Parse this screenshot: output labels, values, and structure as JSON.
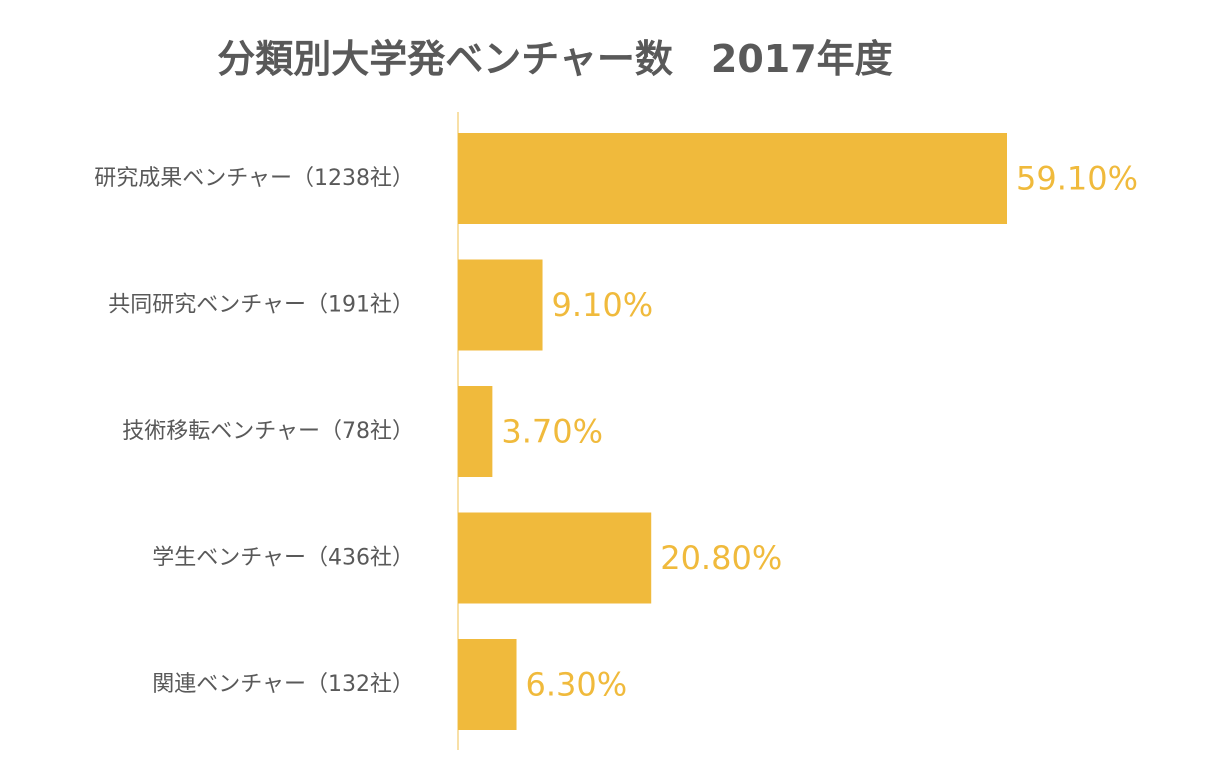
{
  "chart_data": {
    "type": "bar",
    "orientation": "horizontal",
    "title": "分類別大学発ベンチャー数　2017年度",
    "categories": [
      "研究成果ベンチャー（1238社）",
      "共同研究ベンチャー（191社）",
      "技術移転ベンチャー（78社）",
      "学生ベンチャー（436社）",
      "関連ベンチャー（132社）"
    ],
    "values": [
      59.1,
      9.1,
      3.7,
      20.8,
      6.3
    ],
    "data_labels": [
      "59.10%",
      "9.10%",
      "3.70%",
      "20.80%",
      "6.30%"
    ],
    "xlim": [
      0,
      59.1
    ],
    "grid": false,
    "legend": "none",
    "bar_color": "#F0BA3C",
    "label_color": "#F0BA3C",
    "axis_color": "#F5D58A",
    "text_color": "#595959"
  }
}
